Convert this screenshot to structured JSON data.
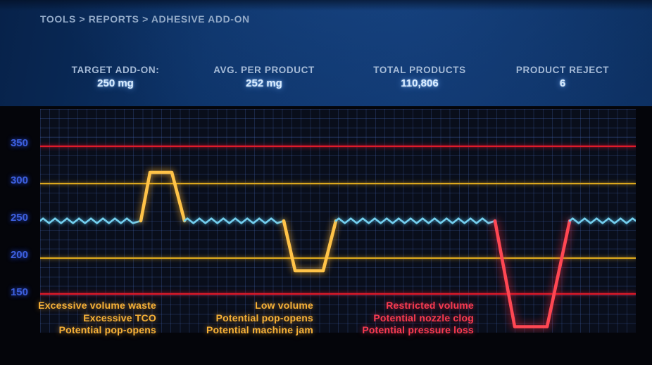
{
  "breadcrumb": {
    "text": "TOOLS > REPORTS > ADHESIVE ADD-ON"
  },
  "header": {
    "stats": [
      {
        "label": "TARGET ADD-ON:",
        "value": "250 mg"
      },
      {
        "label": "AVG. PER PRODUCT",
        "value": "252 mg"
      },
      {
        "label": "TOTAL PRODUCTS",
        "value": "110,806"
      },
      {
        "label": "PRODUCT REJECT",
        "value": "6"
      }
    ]
  },
  "chart_data": {
    "type": "line",
    "unit": "mg",
    "ylim": [
      100,
      400
    ],
    "yticks": [
      350,
      300,
      250,
      200,
      150
    ],
    "grid": true,
    "legend": "none",
    "baseline_value": 250,
    "colors": {
      "normal": "#74cfee",
      "warning": "#ffc348",
      "critical": "#ff4753",
      "threshold_red": "#e11a2b",
      "threshold_amber": "#dca81e",
      "tick_blue": "#3d60de"
    },
    "threshold_lines": [
      {
        "value": 350,
        "severity": "critical-high",
        "color": "#e11a2b"
      },
      {
        "value": 300,
        "severity": "warning-high",
        "color": "#dca81e"
      },
      {
        "value": 200,
        "severity": "warning-low",
        "color": "#dca81e"
      },
      {
        "value": 152,
        "severity": "critical-low",
        "color": "#e11a2b"
      }
    ],
    "series_segments": [
      {
        "kind": "wave",
        "x1": 0.0,
        "x2": 0.169,
        "value": 250,
        "color": "normal"
      },
      {
        "kind": "line",
        "color": "warning",
        "points": [
          [
            0.169,
            250
          ],
          [
            0.1845,
            315
          ],
          [
            0.221,
            315
          ],
          [
            0.2423,
            250
          ]
        ]
      },
      {
        "kind": "wave",
        "x1": 0.2423,
        "x2": 0.409,
        "value": 250,
        "color": "normal"
      },
      {
        "kind": "line",
        "color": "warning",
        "points": [
          [
            0.409,
            250
          ],
          [
            0.428,
            183
          ],
          [
            0.4752,
            183
          ],
          [
            0.4965,
            250
          ]
        ]
      },
      {
        "kind": "wave",
        "x1": 0.4965,
        "x2": 0.7636,
        "value": 250,
        "color": "normal"
      },
      {
        "kind": "line",
        "color": "critical",
        "points": [
          [
            0.7636,
            250
          ],
          [
            0.7967,
            108
          ],
          [
            0.8511,
            108
          ],
          [
            0.889,
            250
          ]
        ]
      },
      {
        "kind": "wave",
        "x1": 0.889,
        "x2": 1.0,
        "value": 250,
        "color": "normal"
      }
    ],
    "annotations": [
      {
        "severity": "warning",
        "lines": [
          "Excessive volume waste",
          "Excessive TCO",
          "Potential pop-opens"
        ]
      },
      {
        "severity": "warning",
        "lines": [
          "Low volume",
          "Potential pop-opens",
          "Potential machine jam"
        ]
      },
      {
        "severity": "critical",
        "lines": [
          "Restricted volume",
          "Potential nozzle clog",
          "Potential pressure loss"
        ]
      }
    ]
  }
}
